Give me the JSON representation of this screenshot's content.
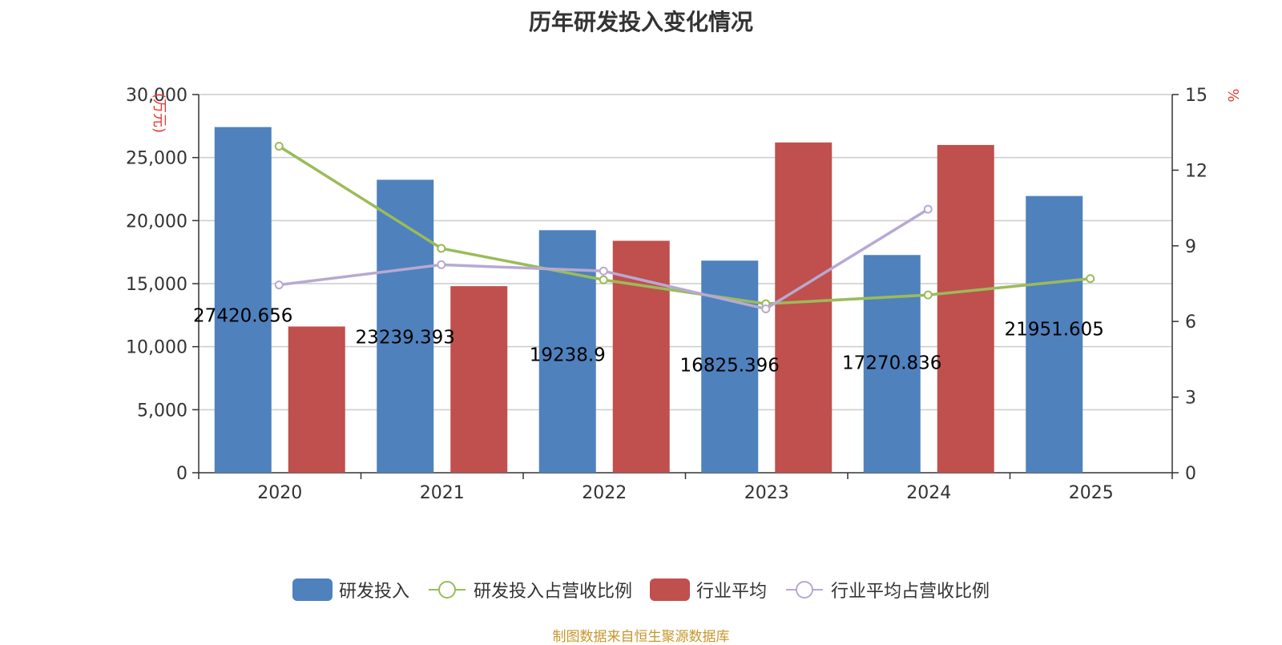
{
  "chart_data": {
    "type": "bar",
    "title": "历年研发投入变化情况",
    "y_left_unit": "(万元)",
    "y_right_unit": "%",
    "categories": [
      "2020",
      "2021",
      "2022",
      "2023",
      "2024",
      "2025"
    ],
    "y_left": {
      "min": 0,
      "max": 30000,
      "ticks": [
        "0",
        "5,000",
        "10,000",
        "15,000",
        "20,000",
        "25,000",
        "30,000"
      ]
    },
    "y_right": {
      "min": 0,
      "max": 15,
      "ticks": [
        "0",
        "3",
        "6",
        "9",
        "12",
        "15"
      ]
    },
    "series": [
      {
        "name": "研发投入",
        "kind": "bar",
        "axis": "left",
        "color": "#4f81bd",
        "values": [
          27420.656,
          23239.393,
          19238.9,
          16825.396,
          17270.836,
          21951.605
        ],
        "labels": [
          "27420.656",
          "23239.393",
          "19238.9",
          "16825.396",
          "17270.836",
          "21951.605"
        ]
      },
      {
        "name": "行业平均",
        "kind": "bar",
        "axis": "left",
        "color": "#c0504d",
        "values": [
          11600,
          14800,
          18400,
          26200,
          26000,
          null
        ]
      },
      {
        "name": "研发投入占营收比例",
        "kind": "line",
        "axis": "right",
        "color": "#9bbb59",
        "values": [
          12.95,
          8.9,
          7.65,
          6.7,
          7.05,
          7.7
        ]
      },
      {
        "name": "行业平均占营收比例",
        "kind": "line",
        "axis": "right",
        "color": "#b7a9d2",
        "values": [
          7.45,
          8.25,
          8.0,
          6.5,
          10.45,
          null
        ]
      }
    ],
    "grid": true,
    "legend_position": "bottom"
  },
  "source_text": "制图数据来自恒生聚源数据库"
}
